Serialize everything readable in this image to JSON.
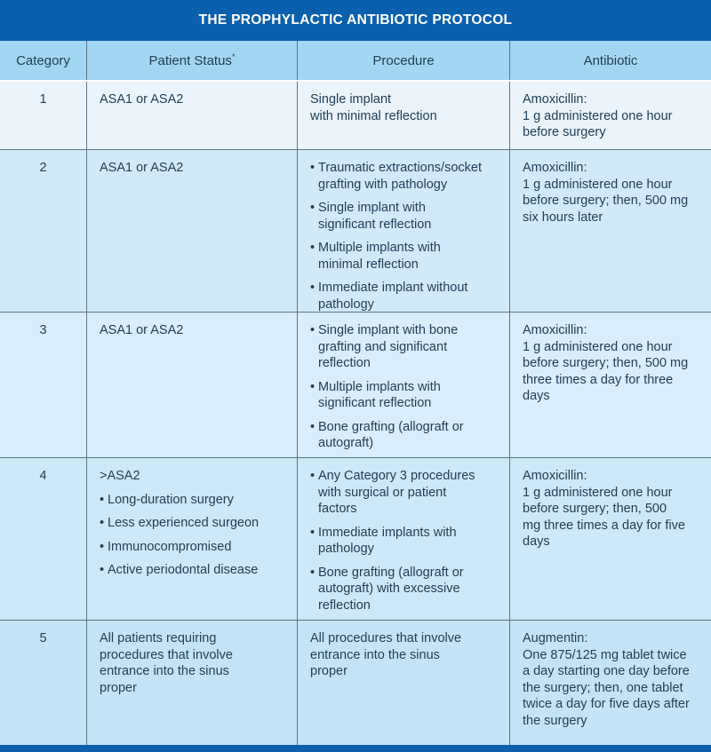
{
  "title": "THE PROPHYLACTIC ANTIBIOTIC PROTOCOL",
  "header": {
    "category": "Category",
    "patient_status": "Patient Status",
    "patient_status_note_marker": "*",
    "procedure": "Procedure",
    "antibiotic": "Antibiotic"
  },
  "colors": {
    "title_bar": "#0b60ad",
    "header_bg": "#a3d6f2",
    "grid_line": "#5d7483",
    "text": "#203f57",
    "row_backgrounds": [
      "#eaf4fa",
      "#d2eaf8",
      "#d9edfa",
      "#cde8f7",
      "#c4e4f6"
    ]
  },
  "rows": [
    {
      "category": "1",
      "patient_status": {
        "lead": "ASA1 or ASA2",
        "bullets": []
      },
      "procedure": {
        "lead": "Single implant\nwith minimal reflection",
        "bullets": []
      },
      "antibiotic": {
        "lead": "Amoxicillin:\n1 g administered one hour\nbefore surgery",
        "bullets": []
      }
    },
    {
      "category": "2",
      "patient_status": {
        "lead": "ASA1 or ASA2",
        "bullets": []
      },
      "procedure": {
        "lead": "",
        "bullets": [
          "Traumatic extractions/socket\ngrafting with pathology",
          "Single implant with\nsignificant reflection",
          "Multiple implants with\nminimal reflection",
          "Immediate implant without\npathology"
        ]
      },
      "antibiotic": {
        "lead": "Amoxicillin:\n1 g administered one hour\nbefore surgery; then, 500 mg\nsix hours later",
        "bullets": []
      }
    },
    {
      "category": "3",
      "patient_status": {
        "lead": "ASA1 or ASA2",
        "bullets": []
      },
      "procedure": {
        "lead": "",
        "bullets": [
          "Single implant with bone\ngrafting and significant\nreflection",
          "Multiple implants with\nsignificant reflection",
          "Bone grafting (allograft or\nautograft)"
        ]
      },
      "antibiotic": {
        "lead": "Amoxicillin:\n1 g administered one hour\nbefore surgery; then, 500 mg\nthree times a day for three\ndays",
        "bullets": []
      }
    },
    {
      "category": "4",
      "patient_status": {
        "lead": ">ASA2",
        "bullets": [
          "Long-duration surgery",
          "Less experienced surgeon",
          "Immunocompromised",
          "Active periodontal disease"
        ]
      },
      "procedure": {
        "lead": "",
        "bullets": [
          "Any Category 3 procedures\nwith surgical or patient\nfactors",
          "Immediate implants with\npathology",
          "Bone grafting (allograft or\nautograft) with excessive\nreflection"
        ]
      },
      "antibiotic": {
        "lead": "Amoxicillin:\n1 g administered one hour\nbefore surgery; then, 500\nmg three times a day for five\ndays",
        "bullets": []
      }
    },
    {
      "category": "5",
      "patient_status": {
        "lead": "All patients requiring\nprocedures that involve\nentrance into the sinus\nproper",
        "bullets": []
      },
      "procedure": {
        "lead": "All procedures that involve\nentrance into the sinus\nproper",
        "bullets": []
      },
      "antibiotic": {
        "lead": "Augmentin:\nOne 875/125 mg tablet twice\na day starting one day before\nthe surgery; then, one tablet\ntwice a day for five days after\nthe surgery",
        "bullets": []
      }
    }
  ]
}
